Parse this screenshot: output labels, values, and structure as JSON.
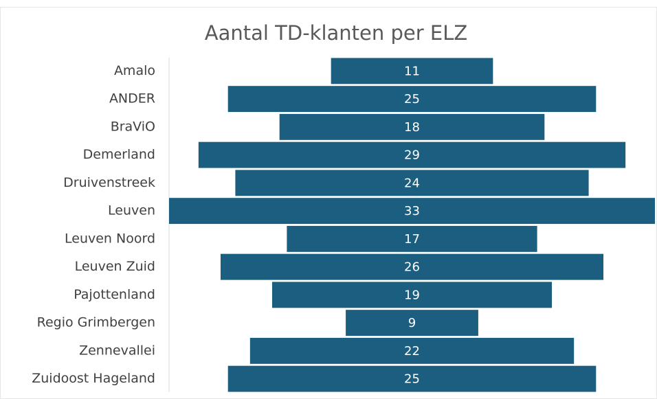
{
  "chart_data": {
    "type": "funnel",
    "title": "Aantal TD-klanten per ELZ",
    "categories": [
      "Amalo",
      "ANDER",
      "BraViO",
      "Demerland",
      "Druivenstreek",
      "Leuven",
      "Leuven Noord",
      "Leuven Zuid",
      "Pajottenland",
      "Regio Grimbergen",
      "Zennevallei",
      "Zuidoost Hageland"
    ],
    "values": [
      11,
      25,
      18,
      29,
      24,
      33,
      17,
      26,
      19,
      9,
      22,
      25
    ],
    "color": "#1b5e7f"
  }
}
